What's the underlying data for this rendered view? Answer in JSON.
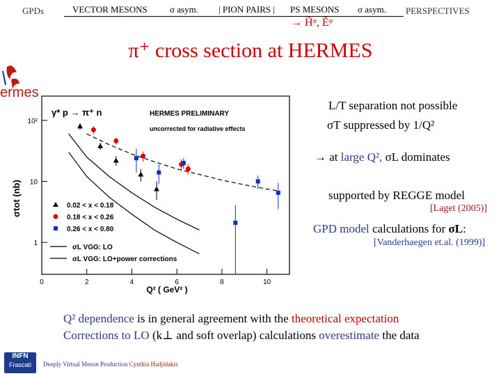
{
  "header": {
    "left": "GPDs",
    "nav_vector": "VECTOR MESONS",
    "nav_sigma_asym_1": "σ asym.",
    "nav_pion_pairs": "| PION PAIRS |",
    "nav_ps_mesons": "PS MESONS",
    "nav_sigma_asym_2": "σ asym.",
    "right": "PERSPECTIVES",
    "sub_arrow": "→",
    "sub_text": "H̃ᵠ, Ẽᵠ"
  },
  "title": "π⁺ cross section at HERMES",
  "logo": {
    "text": "ermes"
  },
  "plot": {
    "header_reaction": "γ* p → π⁺ n",
    "header_prelim": "HERMES PRELIMINARY",
    "header_uncorr": "uncorrected for radiative effects",
    "ylabel": "σtot (nb)",
    "xlabel": "Q²  ( GeV² )",
    "yticks": [
      "10²",
      "10",
      "1"
    ],
    "xticks": [
      "0",
      "2",
      "4",
      "6",
      "8",
      "10"
    ],
    "legend": [
      {
        "label": "0.02 < x < 0.18",
        "color": "#000000",
        "marker": "triangle"
      },
      {
        "label": "0.18 < x < 0.26",
        "color": "#e00000",
        "marker": "circle"
      },
      {
        "label": "0.26 < x < 0.80",
        "color": "#1030c0",
        "marker": "square"
      }
    ],
    "legend_lines": [
      {
        "label": "σL  VGG: LO",
        "style": "solid"
      },
      {
        "label": "σL  VGG: LO+power corrections",
        "style": "solid"
      }
    ]
  },
  "chart_data": {
    "type": "scatter",
    "title": "",
    "xlabel": "Q²  ( GeV² )",
    "ylabel": "σtot (nb)",
    "xlim": [
      0,
      11
    ],
    "ylim": [
      0.3,
      250
    ],
    "ylog": true,
    "series": [
      {
        "name": "0.02 < x < 0.18",
        "color": "#000000",
        "marker": "triangle",
        "x": [
          1.7,
          2.6,
          3.3,
          4.4,
          5.1
        ],
        "y": [
          80,
          38,
          22,
          13,
          7.5
        ],
        "err": [
          10,
          5,
          4,
          3,
          2.5
        ]
      },
      {
        "name": "0.18 < x < 0.26",
        "color": "#e00000",
        "marker": "circle",
        "x": [
          2.3,
          3.3,
          4.5,
          6.2,
          6.5
        ],
        "y": [
          70,
          46,
          26,
          19,
          16
        ],
        "err": [
          10,
          6,
          5,
          4,
          3
        ]
      },
      {
        "name": "0.26 < x < 0.80",
        "color": "#1030c0",
        "marker": "square",
        "x": [
          4.2,
          5.2,
          6.3,
          8.6,
          9.6,
          10.5
        ],
        "y": [
          24,
          14,
          20,
          2.1,
          10,
          6.5
        ],
        "err": [
          10,
          5,
          4,
          2.0,
          2.5,
          3
        ]
      }
    ],
    "curves": [
      {
        "name": "σL  VGG: LO",
        "style": "solid",
        "color": "#000000",
        "x": [
          1.2,
          2,
          3,
          4,
          5,
          6,
          7
        ],
        "y": [
          60,
          25,
          12,
          6.5,
          3.8,
          2.4,
          1.6
        ]
      },
      {
        "name": "σL  VGG: LO+power corrections",
        "style": "solid",
        "color": "#000000",
        "x": [
          1.2,
          2,
          3,
          4,
          5,
          6,
          7
        ],
        "y": [
          30,
          12,
          5.5,
          2.9,
          1.6,
          1.0,
          0.65
        ]
      },
      {
        "name": "",
        "style": "dashed",
        "color": "#000000",
        "x": [
          2,
          3,
          4,
          5,
          6,
          7,
          8,
          9,
          10,
          10.5
        ],
        "y": [
          60,
          40,
          28,
          21,
          16,
          13,
          10.5,
          8.8,
          7.5,
          7.0
        ]
      }
    ]
  },
  "right": {
    "lt": "L/T separation not possible",
    "sigmaT": "σT suppressed by 1/Q²",
    "arrow": "→",
    "at": "at",
    "large_q2": "large Q²,",
    "sigmaL_dom": "σL dominates",
    "regge": "supported by REGGE model",
    "laget": "[Laget (2005)]",
    "gpd_model": "GPD model",
    "calc_for": "calculations for",
    "sigma_L_bold": "σL",
    "colon": ":",
    "vdh": "[Vanderhaegen et.al. (1999)]"
  },
  "bottom": {
    "q2dep": "Q² dependence",
    "general": "is in general agreement with the",
    "theo": "theoretical expectation",
    "corr": "Corrections to LO",
    "kperp": "(k⊥ and soft overlap) calculations",
    "over": "overestimate",
    "the_data": "the data"
  },
  "footer": {
    "text": "Deeply Virtual Meson Production",
    "author": "Cynthia Hadjidakis",
    "logo_line1": "INFN",
    "logo_line2": "Frascati"
  },
  "colors": {
    "title": "#d00000",
    "accent_blue": "#2b3a8a",
    "accent_red": "#c00000"
  }
}
